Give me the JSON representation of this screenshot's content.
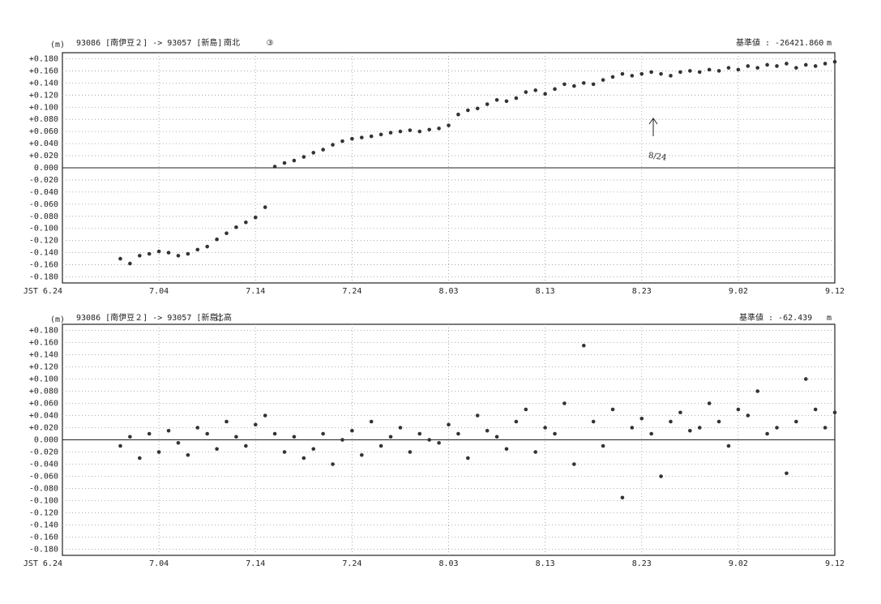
{
  "chart_data": [
    {
      "type": "scatter",
      "unit_label": "(m)",
      "title": "93086 [南伊豆２] -> 93057 [新島]",
      "subtitle": "南北",
      "mark": "③",
      "reference_label": "基準値 : -26421.860",
      "reference_unit": "m",
      "annotation": "8/24",
      "color": "#333333",
      "grid": true,
      "xlim": [
        0,
        80
      ],
      "xticks": [
        {
          "value": 0,
          "label": "JST 6.24"
        },
        {
          "value": 10,
          "label": "7.04"
        },
        {
          "value": 20,
          "label": "7.14"
        },
        {
          "value": 30,
          "label": "7.24"
        },
        {
          "value": 40,
          "label": "8.03"
        },
        {
          "value": 50,
          "label": "8.13"
        },
        {
          "value": 60,
          "label": "8.23"
        },
        {
          "value": 70,
          "label": "9.02"
        },
        {
          "value": 80,
          "label": "9.12"
        }
      ],
      "ylim": [
        -0.19,
        0.19
      ],
      "yticks": [
        {
          "value": 0.18,
          "label": "+0.180"
        },
        {
          "value": 0.16,
          "label": "+0.160"
        },
        {
          "value": 0.14,
          "label": "+0.140"
        },
        {
          "value": 0.12,
          "label": "+0.120"
        },
        {
          "value": 0.1,
          "label": "+0.100"
        },
        {
          "value": 0.08,
          "label": "+0.080"
        },
        {
          "value": 0.06,
          "label": "+0.060"
        },
        {
          "value": 0.04,
          "label": "+0.040"
        },
        {
          "value": 0.02,
          "label": "+0.020"
        },
        {
          "value": 0,
          "label": "0.000"
        },
        {
          "value": -0.02,
          "label": "-0.020"
        },
        {
          "value": -0.04,
          "label": "-0.040"
        },
        {
          "value": -0.06,
          "label": "-0.060"
        },
        {
          "value": -0.08,
          "label": "-0.080"
        },
        {
          "value": -0.1,
          "label": "-0.100"
        },
        {
          "value": -0.12,
          "label": "-0.120"
        },
        {
          "value": -0.14,
          "label": "-0.140"
        },
        {
          "value": -0.16,
          "label": "-0.160"
        },
        {
          "value": -0.18,
          "label": "-0.180"
        }
      ],
      "x": [
        6,
        7,
        8,
        9,
        10,
        11,
        12,
        13,
        14,
        15,
        16,
        17,
        18,
        19,
        20,
        21,
        22,
        23,
        24,
        25,
        26,
        27,
        28,
        29,
        30,
        31,
        32,
        33,
        34,
        35,
        36,
        37,
        38,
        39,
        40,
        41,
        42,
        43,
        44,
        45,
        46,
        47,
        48,
        49,
        50,
        51,
        52,
        53,
        54,
        55,
        56,
        57,
        58,
        59,
        60,
        61,
        62,
        63,
        64,
        65,
        66,
        67,
        68,
        69,
        70,
        71,
        72,
        73,
        74,
        75,
        76,
        77,
        78,
        79,
        80
      ],
      "values": [
        -0.15,
        -0.158,
        -0.145,
        -0.142,
        -0.138,
        -0.14,
        -0.145,
        -0.142,
        -0.135,
        -0.13,
        -0.118,
        -0.108,
        -0.098,
        -0.09,
        -0.082,
        -0.065,
        0.002,
        0.008,
        0.012,
        0.018,
        0.025,
        0.03,
        0.038,
        0.044,
        0.048,
        0.05,
        0.052,
        0.055,
        0.058,
        0.06,
        0.062,
        0.06,
        0.063,
        0.065,
        0.07,
        0.088,
        0.095,
        0.098,
        0.105,
        0.112,
        0.11,
        0.115,
        0.125,
        0.128,
        0.122,
        0.13,
        0.138,
        0.135,
        0.14,
        0.138,
        0.145,
        0.15,
        0.155,
        0.152,
        0.155,
        0.158,
        0.155,
        0.152,
        0.158,
        0.16,
        0.158,
        0.162,
        0.16,
        0.165,
        0.162,
        0.168,
        0.165,
        0.17,
        0.168,
        0.172,
        0.165,
        0.17,
        0.168,
        0.172,
        0.175
      ]
    },
    {
      "type": "scatter",
      "unit_label": "(m)",
      "title": "93086 [南伊豆２] -> 93057 [新島]",
      "subtitle": "比高",
      "reference_label": "基準値 : -62.439",
      "reference_unit": "m",
      "color": "#333333",
      "grid": true,
      "xlim": [
        0,
        80
      ],
      "xticks": [
        {
          "value": 0,
          "label": "JST 6.24"
        },
        {
          "value": 10,
          "label": "7.04"
        },
        {
          "value": 20,
          "label": "7.14"
        },
        {
          "value": 30,
          "label": "7.24"
        },
        {
          "value": 40,
          "label": "8.03"
        },
        {
          "value": 50,
          "label": "8.13"
        },
        {
          "value": 60,
          "label": "8.23"
        },
        {
          "value": 70,
          "label": "9.02"
        },
        {
          "value": 80,
          "label": "9.12"
        }
      ],
      "ylim": [
        -0.19,
        0.19
      ],
      "yticks": [
        {
          "value": 0.18,
          "label": "+0.180"
        },
        {
          "value": 0.16,
          "label": "+0.160"
        },
        {
          "value": 0.14,
          "label": "+0.140"
        },
        {
          "value": 0.12,
          "label": "+0.120"
        },
        {
          "value": 0.1,
          "label": "+0.100"
        },
        {
          "value": 0.08,
          "label": "+0.080"
        },
        {
          "value": 0.06,
          "label": "+0.060"
        },
        {
          "value": 0.04,
          "label": "+0.040"
        },
        {
          "value": 0.02,
          "label": "+0.020"
        },
        {
          "value": 0,
          "label": "0.000"
        },
        {
          "value": -0.02,
          "label": "-0.020"
        },
        {
          "value": -0.04,
          "label": "-0.040"
        },
        {
          "value": -0.06,
          "label": "-0.060"
        },
        {
          "value": -0.08,
          "label": "-0.080"
        },
        {
          "value": -0.1,
          "label": "-0.100"
        },
        {
          "value": -0.12,
          "label": "-0.120"
        },
        {
          "value": -0.14,
          "label": "-0.140"
        },
        {
          "value": -0.16,
          "label": "-0.160"
        },
        {
          "value": -0.18,
          "label": "-0.180"
        }
      ],
      "x": [
        6,
        7,
        8,
        9,
        10,
        11,
        12,
        13,
        14,
        15,
        16,
        17,
        18,
        19,
        20,
        21,
        22,
        23,
        24,
        25,
        26,
        27,
        28,
        29,
        30,
        31,
        32,
        33,
        34,
        35,
        36,
        37,
        38,
        39,
        40,
        41,
        42,
        43,
        44,
        45,
        46,
        47,
        48,
        49,
        50,
        51,
        52,
        53,
        54,
        55,
        56,
        57,
        58,
        59,
        60,
        61,
        62,
        63,
        64,
        65,
        66,
        67,
        68,
        69,
        70,
        71,
        72,
        73,
        74,
        75,
        76,
        77,
        78,
        79,
        80
      ],
      "values": [
        -0.01,
        0.005,
        -0.03,
        0.01,
        -0.02,
        0.015,
        -0.005,
        -0.025,
        0.02,
        0.01,
        -0.015,
        0.03,
        0.005,
        -0.01,
        0.025,
        0.04,
        0.01,
        -0.02,
        0.005,
        -0.03,
        -0.015,
        0.01,
        -0.04,
        0.0,
        0.015,
        -0.025,
        0.03,
        -0.01,
        0.005,
        0.02,
        -0.02,
        0.01,
        0.0,
        -0.005,
        0.025,
        0.01,
        -0.03,
        0.04,
        0.015,
        0.005,
        -0.015,
        0.03,
        0.05,
        -0.02,
        0.02,
        0.01,
        0.06,
        -0.04,
        0.155,
        0.03,
        -0.01,
        0.05,
        -0.095,
        0.02,
        0.035,
        0.01,
        -0.06,
        0.03,
        0.045,
        0.015,
        0.02,
        0.06,
        0.03,
        -0.01,
        0.05,
        0.04,
        0.08,
        0.01,
        0.02,
        -0.055,
        0.03,
        0.1,
        0.05,
        0.02,
        0.045
      ]
    }
  ]
}
